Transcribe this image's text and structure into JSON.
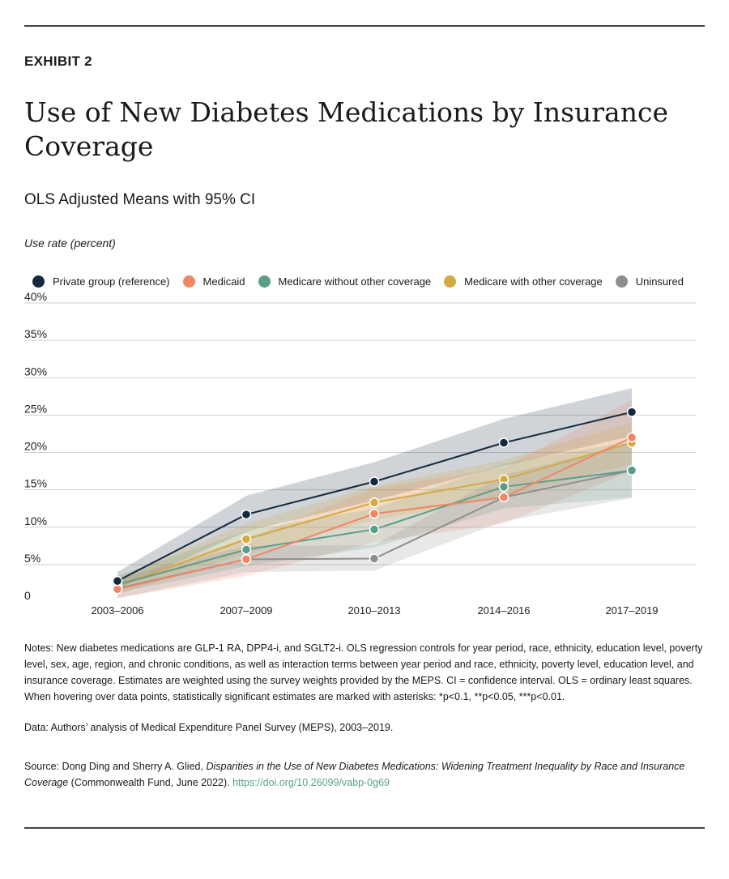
{
  "header": {
    "exhibit": "EXHIBIT 2",
    "title": "Use of New Diabetes Medications by Insurance Coverage",
    "subtitle": "OLS Adjusted Means with 95% CI",
    "ylabel": "Use rate (percent)"
  },
  "chart_data": {
    "type": "line",
    "categories": [
      "2003–2006",
      "2007–2009",
      "2010–2013",
      "2014–2016",
      "2017–2019"
    ],
    "ylim": [
      0,
      40
    ],
    "yticks": [
      0,
      5,
      10,
      15,
      20,
      25,
      30,
      35,
      40
    ],
    "ytick_labels": [
      "0",
      "5%",
      "10%",
      "15%",
      "20%",
      "25%",
      "30%",
      "35%",
      "40%"
    ],
    "grid": true,
    "legend_placement": "top",
    "series": [
      {
        "name": "Private group (reference)",
        "color": "#14293d",
        "values": [
          2.8,
          11.7,
          16.1,
          21.3,
          25.4
        ],
        "ci_low": [
          1.8,
          9.4,
          13.6,
          18.2,
          22.2
        ],
        "ci_high": [
          4.0,
          14.2,
          18.7,
          24.5,
          28.6
        ]
      },
      {
        "name": "Medicaid",
        "color": "#ef8766",
        "values": [
          1.7,
          5.7,
          11.8,
          14.0,
          22.0
        ],
        "ci_low": [
          0.5,
          3.5,
          8.0,
          10.5,
          17.5
        ],
        "ci_high": [
          3.0,
          8.5,
          15.2,
          18.0,
          27.0
        ]
      },
      {
        "name": "Medicare without other coverage",
        "color": "#5a9e8a",
        "values": [
          2.3,
          7.0,
          9.7,
          15.4,
          17.6
        ],
        "ci_low": [
          1.2,
          4.8,
          7.3,
          12.5,
          14.0
        ],
        "ci_high": [
          3.5,
          9.5,
          12.5,
          18.5,
          21.5
        ]
      },
      {
        "name": "Medicare with other coverage",
        "color": "#d4a843",
        "values": [
          2.1,
          8.4,
          13.3,
          16.4,
          21.3
        ],
        "ci_low": [
          1.0,
          6.5,
          11.0,
          14.0,
          18.5
        ],
        "ci_high": [
          3.3,
          10.5,
          15.5,
          19.0,
          24.0
        ]
      },
      {
        "name": "Uninsured",
        "color": "#8e8e8e",
        "values": [
          1.8,
          5.7,
          5.8,
          14.0,
          17.6
        ],
        "ci_low": [
          0.5,
          4.0,
          4.2,
          10.8,
          13.9
        ],
        "ci_high": [
          3.2,
          7.5,
          7.6,
          17.0,
          21.2
        ]
      }
    ]
  },
  "notes": {
    "notes": "Notes: New diabetes medications are GLP-1 RA, DPP4-i, and SGLT2-i. OLS regression controls for year period, race, ethnicity, education level, poverty level, sex, age, region, and chronic conditions, as well as interaction terms between year period and race, ethnicity, poverty level, education level, and insurance coverage. Estimates are weighted using the survey weights provided by the MEPS. CI = confidence interval. OLS = ordinary least squares. When hovering over data points, statistically significant estimates are marked with asterisks: *p<0.1, **p<0.05, ***p<0.01.",
    "data": "Data: Authors’ analysis of Medical Expenditure Panel Survey (MEPS), 2003–2019.",
    "source_prefix": "Source: Dong Ding and Sherry A. Glied, ",
    "source_title": "Disparities in the Use of New Diabetes Medications: Widening Treatment Inequality by Race and Insurance Coverage",
    "source_suffix": " (Commonwealth Fund, June 2022). ",
    "doi": "https://doi.org/10.26099/vabp-0g69"
  }
}
